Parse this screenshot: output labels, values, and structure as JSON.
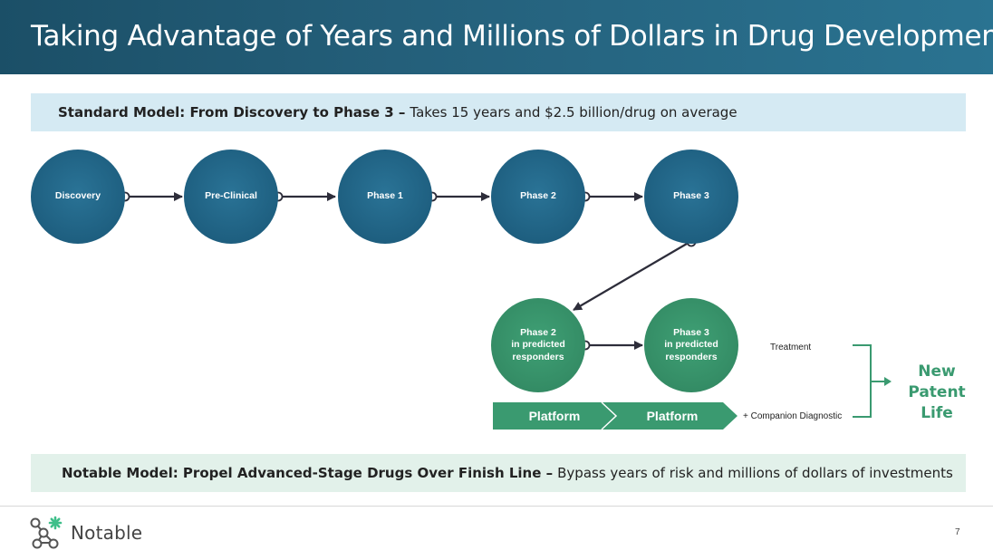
{
  "header": {
    "title": "Taking Advantage of Years and Millions of Dollars in Drug Development"
  },
  "standard_banner": {
    "bold": "Standard Model: From Discovery to Phase 3 –",
    "text": "Takes 15 years and $2.5 billion/drug on average"
  },
  "standard_nodes": [
    "Discovery",
    "Pre-Clinical",
    "Phase 1",
    "Phase 2",
    "Phase 3"
  ],
  "notable_nodes": [
    "Phase 2\nin predicted\nresponders",
    "Phase 3\nin predicted\nresponders"
  ],
  "platform": {
    "left": "Platform",
    "right": "Platform"
  },
  "labels": {
    "treatment": "Treatment",
    "companion": "+ Companion Diagnostic",
    "patent": "New Patent Life"
  },
  "notable_banner": {
    "bold": "Notable Model: Propel Advanced-Stage Drugs Over Finish Line –",
    "text": "Bypass years of risk and millions of dollars of investments"
  },
  "footer": {
    "logo_text": "Notable",
    "page_number": "7"
  },
  "colors": {
    "header": "#1b4f67",
    "node_blue": "#1e5f80",
    "node_green": "#348c65",
    "accent_green": "#3a9a70"
  }
}
